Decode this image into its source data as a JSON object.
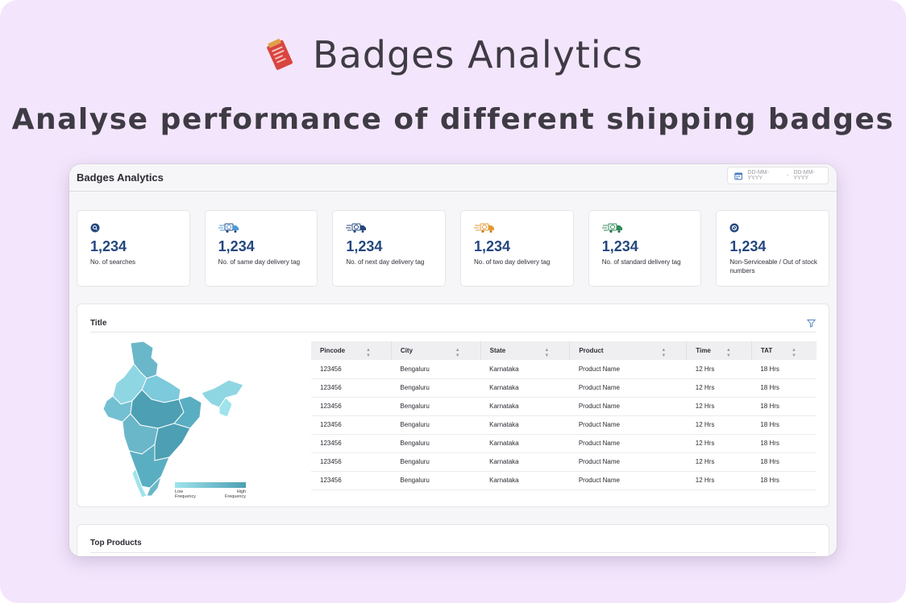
{
  "hero": {
    "title": "Badges Analytics",
    "subtitle": "Analyse performance of different shipping badges",
    "logo_icon": "clipboard-badge-icon"
  },
  "app": {
    "title": "Badges Analytics",
    "date_picker": {
      "from_placeholder": "DD-MM-YYYY",
      "separator": "-",
      "to_placeholder": "DD-MM-YYYY"
    }
  },
  "stats": [
    {
      "icon": "search-icon",
      "value": "1,234",
      "label": "No. of searches",
      "color": "#24477e"
    },
    {
      "icon": "same-day-truck-icon",
      "value": "1,234",
      "label": "No. of same day delivery tag",
      "color": "#4a9ad8"
    },
    {
      "icon": "next-day-truck-icon",
      "value": "1,234",
      "label": "No. of next day delivery tag",
      "color": "#24477e"
    },
    {
      "icon": "two-day-truck-icon",
      "value": "1,234",
      "label": "No. of two day delivery tag",
      "color": "#e39a35"
    },
    {
      "icon": "standard-truck-icon",
      "value": "1,234",
      "label": "No. of standard delivery tag",
      "color": "#2f8a5b"
    },
    {
      "icon": "blocked-icon",
      "value": "1,234",
      "label": "Non-Serviceable / Out of stock numbers",
      "color": "#24477e"
    }
  ],
  "panel": {
    "title": "Title",
    "legend": {
      "low": "Low Frequency",
      "high": "High Frequency",
      "low_color": "#9fe3ec",
      "high_color": "#4d9fb3"
    },
    "table": {
      "columns": [
        "Pincode",
        "City",
        "State",
        "Product",
        "Time",
        "TAT"
      ],
      "rows": [
        [
          "123456",
          "Bengaluru",
          "Karnataka",
          "Product Name",
          "12 Hrs",
          "18 Hrs"
        ],
        [
          "123456",
          "Bengaluru",
          "Karnataka",
          "Product Name",
          "12 Hrs",
          "18 Hrs"
        ],
        [
          "123456",
          "Bengaluru",
          "Karnataka",
          "Product Name",
          "12 Hrs",
          "18 Hrs"
        ],
        [
          "123456",
          "Bengaluru",
          "Karnataka",
          "Product Name",
          "12 Hrs",
          "18 Hrs"
        ],
        [
          "123456",
          "Bengaluru",
          "Karnataka",
          "Product Name",
          "12 Hrs",
          "18 Hrs"
        ],
        [
          "123456",
          "Bengaluru",
          "Karnataka",
          "Product Name",
          "12 Hrs",
          "18 Hrs"
        ],
        [
          "123456",
          "Bengaluru",
          "Karnataka",
          "Product Name",
          "12 Hrs",
          "18 Hrs"
        ]
      ]
    }
  },
  "top_products": {
    "title": "Top Products"
  }
}
